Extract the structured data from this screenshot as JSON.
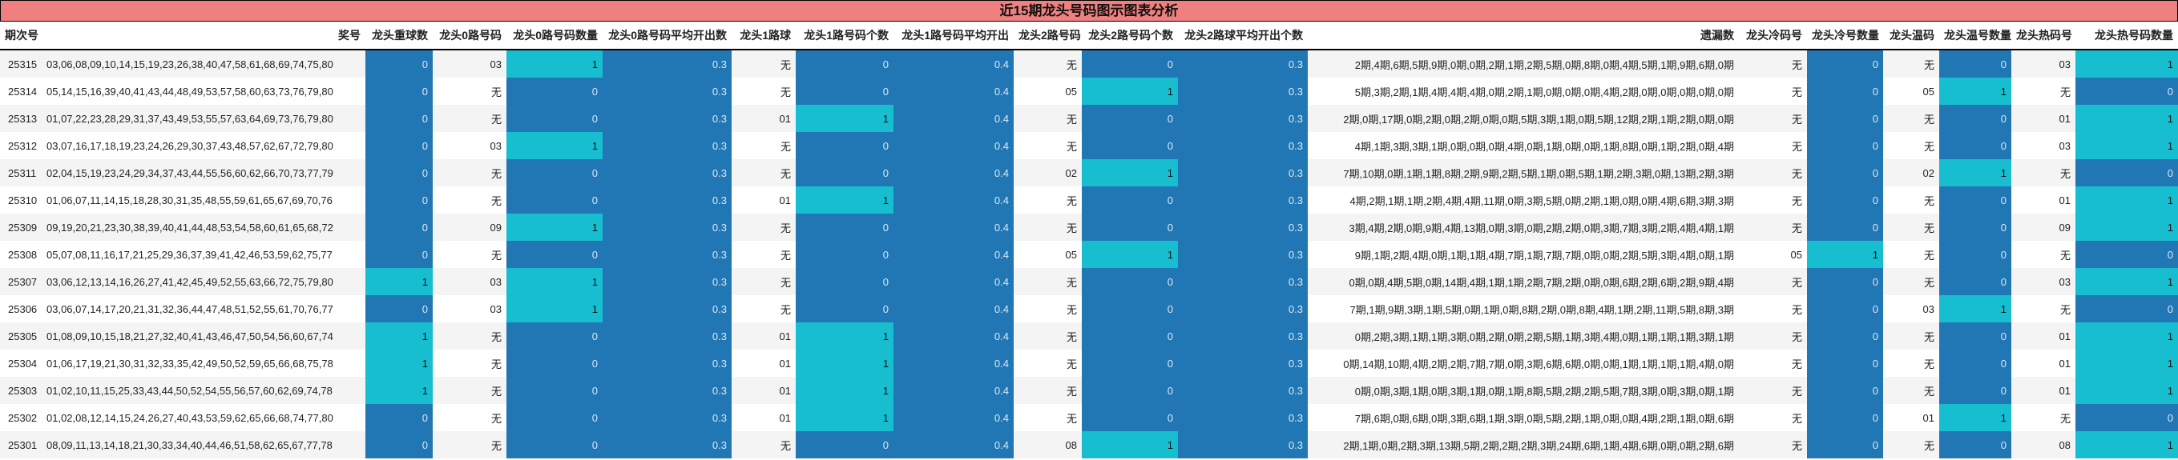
{
  "title": "近15期龙头号码图示图表分析",
  "colors": {
    "header_bg": "#f08080",
    "blue": "#2177b4",
    "cyan": "#17becf",
    "row_alt": "#f4f4f4"
  },
  "columns": [
    "期次号",
    "奖号",
    "龙头重球数",
    "龙头0路号码",
    "龙头0路号码数量",
    "龙头0路号码平均开出数",
    "龙头1路球",
    "龙头1路号码个数",
    "龙头1路号码平均开出",
    "龙头2路号码",
    "龙头2路号码个数",
    "龙头2路球平均开出个数",
    "遗漏数",
    "龙头冷码号",
    "龙头冷号数量",
    "龙头温码",
    "龙头温号数量",
    "龙头热码号",
    "龙头热号码数量"
  ],
  "rows": [
    {
      "period": "25315",
      "nums": "03,06,08,09,10,14,15,19,23,26,38,40,47,58,61,68,69,74,75,80",
      "repeat": "0",
      "r0": "03",
      "r0n": "1",
      "r0avg": "0.3",
      "r1": "无",
      "r1n": "0",
      "r1avg": "0.4",
      "r2": "无",
      "r2n": "0",
      "r2avg": "0.3",
      "miss": "2期,4期,6期,5期,9期,0期,0期,2期,1期,2期,5期,0期,8期,0期,4期,5期,1期,9期,6期,0期",
      "cold": "无",
      "coldn": "0",
      "warm": "无",
      "warmn": "0",
      "hot": "03",
      "hotn": "1"
    },
    {
      "period": "25314",
      "nums": "05,14,15,16,39,40,41,43,44,48,49,53,57,58,60,63,73,76,79,80",
      "repeat": "0",
      "r0": "无",
      "r0n": "0",
      "r0avg": "0.3",
      "r1": "无",
      "r1n": "0",
      "r1avg": "0.4",
      "r2": "05",
      "r2n": "1",
      "r2avg": "0.3",
      "miss": "5期,3期,2期,1期,4期,4期,4期,0期,2期,1期,0期,0期,0期,4期,2期,0期,0期,0期,0期,0期",
      "cold": "无",
      "coldn": "0",
      "warm": "05",
      "warmn": "1",
      "hot": "无",
      "hotn": "0"
    },
    {
      "period": "25313",
      "nums": "01,07,22,23,28,29,31,37,43,49,53,55,57,63,64,69,73,76,79,80",
      "repeat": "0",
      "r0": "无",
      "r0n": "0",
      "r0avg": "0.3",
      "r1": "01",
      "r1n": "1",
      "r1avg": "0.4",
      "r2": "无",
      "r2n": "0",
      "r2avg": "0.3",
      "miss": "2期,0期,17期,0期,2期,0期,2期,0期,0期,5期,3期,1期,0期,5期,12期,2期,1期,2期,0期,0期",
      "cold": "无",
      "coldn": "0",
      "warm": "无",
      "warmn": "0",
      "hot": "01",
      "hotn": "1"
    },
    {
      "period": "25312",
      "nums": "03,07,16,17,18,19,23,24,26,29,30,37,43,48,57,62,67,72,79,80",
      "repeat": "0",
      "r0": "03",
      "r0n": "1",
      "r0avg": "0.3",
      "r1": "无",
      "r1n": "0",
      "r1avg": "0.4",
      "r2": "无",
      "r2n": "0",
      "r2avg": "0.3",
      "miss": "4期,1期,3期,3期,1期,0期,0期,0期,4期,0期,1期,0期,0期,1期,8期,0期,1期,2期,0期,4期",
      "cold": "无",
      "coldn": "0",
      "warm": "无",
      "warmn": "0",
      "hot": "03",
      "hotn": "1"
    },
    {
      "period": "25311",
      "nums": "02,04,15,19,23,24,29,34,37,43,44,55,56,60,62,66,70,73,77,79",
      "repeat": "0",
      "r0": "无",
      "r0n": "0",
      "r0avg": "0.3",
      "r1": "无",
      "r1n": "0",
      "r1avg": "0.4",
      "r2": "02",
      "r2n": "1",
      "r2avg": "0.3",
      "miss": "7期,10期,0期,1期,1期,8期,2期,9期,2期,5期,1期,0期,5期,1期,2期,3期,0期,13期,2期,3期",
      "cold": "无",
      "coldn": "0",
      "warm": "02",
      "warmn": "1",
      "hot": "无",
      "hotn": "0"
    },
    {
      "period": "25310",
      "nums": "01,06,07,11,14,15,18,28,30,31,35,48,55,59,61,65,67,69,70,76",
      "repeat": "0",
      "r0": "无",
      "r0n": "0",
      "r0avg": "0.3",
      "r1": "01",
      "r1n": "1",
      "r1avg": "0.4",
      "r2": "无",
      "r2n": "0",
      "r2avg": "0.3",
      "miss": "4期,2期,1期,1期,2期,4期,4期,11期,0期,3期,5期,0期,2期,1期,0期,0期,4期,6期,3期,3期",
      "cold": "无",
      "coldn": "0",
      "warm": "无",
      "warmn": "0",
      "hot": "01",
      "hotn": "1"
    },
    {
      "period": "25309",
      "nums": "09,19,20,21,23,30,38,39,40,41,44,48,53,54,58,60,61,65,68,72",
      "repeat": "0",
      "r0": "09",
      "r0n": "1",
      "r0avg": "0.3",
      "r1": "无",
      "r1n": "0",
      "r1avg": "0.4",
      "r2": "无",
      "r2n": "0",
      "r2avg": "0.3",
      "miss": "3期,4期,2期,0期,9期,4期,13期,0期,3期,0期,2期,2期,0期,3期,7期,3期,2期,4期,4期,1期",
      "cold": "无",
      "coldn": "0",
      "warm": "无",
      "warmn": "0",
      "hot": "09",
      "hotn": "1"
    },
    {
      "period": "25308",
      "nums": "05,07,08,11,16,17,21,25,29,36,37,39,41,42,46,53,59,62,75,77",
      "repeat": "0",
      "r0": "无",
      "r0n": "0",
      "r0avg": "0.3",
      "r1": "无",
      "r1n": "0",
      "r1avg": "0.4",
      "r2": "05",
      "r2n": "1",
      "r2avg": "0.3",
      "miss": "9期,1期,2期,4期,0期,1期,1期,4期,7期,1期,7期,7期,0期,0期,2期,5期,3期,4期,0期,1期",
      "cold": "05",
      "coldn": "1",
      "warm": "无",
      "warmn": "0",
      "hot": "无",
      "hotn": "0"
    },
    {
      "period": "25307",
      "nums": "03,06,12,13,14,16,26,27,41,42,45,49,52,55,63,66,72,75,79,80",
      "repeat": "1",
      "r0": "03",
      "r0n": "1",
      "r0avg": "0.3",
      "r1": "无",
      "r1n": "0",
      "r1avg": "0.4",
      "r2": "无",
      "r2n": "0",
      "r2avg": "0.3",
      "miss": "0期,0期,4期,5期,0期,14期,4期,1期,1期,2期,7期,2期,0期,0期,6期,2期,6期,2期,9期,4期",
      "cold": "无",
      "coldn": "0",
      "warm": "无",
      "warmn": "0",
      "hot": "03",
      "hotn": "1"
    },
    {
      "period": "25306",
      "nums": "03,06,07,14,17,20,21,31,32,36,44,47,48,51,52,55,61,70,76,77",
      "repeat": "0",
      "r0": "03",
      "r0n": "1",
      "r0avg": "0.3",
      "r1": "无",
      "r1n": "0",
      "r1avg": "0.4",
      "r2": "无",
      "r2n": "0",
      "r2avg": "0.3",
      "miss": "7期,1期,9期,3期,1期,5期,0期,1期,0期,8期,2期,0期,8期,4期,1期,2期,11期,5期,8期,3期",
      "cold": "无",
      "coldn": "0",
      "warm": "03",
      "warmn": "1",
      "hot": "无",
      "hotn": "0"
    },
    {
      "period": "25305",
      "nums": "01,08,09,10,15,18,21,27,32,40,41,43,46,47,50,54,56,60,67,74",
      "repeat": "1",
      "r0": "无",
      "r0n": "0",
      "r0avg": "0.3",
      "r1": "01",
      "r1n": "1",
      "r1avg": "0.4",
      "r2": "无",
      "r2n": "0",
      "r2avg": "0.3",
      "miss": "0期,2期,3期,1期,1期,3期,0期,2期,0期,2期,5期,1期,3期,4期,0期,1期,1期,1期,3期,1期",
      "cold": "无",
      "coldn": "0",
      "warm": "无",
      "warmn": "0",
      "hot": "01",
      "hotn": "1"
    },
    {
      "period": "25304",
      "nums": "01,06,17,19,21,30,31,32,33,35,42,49,50,52,59,65,66,68,75,78",
      "repeat": "1",
      "r0": "无",
      "r0n": "0",
      "r0avg": "0.3",
      "r1": "01",
      "r1n": "1",
      "r1avg": "0.4",
      "r2": "无",
      "r2n": "0",
      "r2avg": "0.3",
      "miss": "0期,14期,10期,4期,2期,2期,7期,7期,0期,3期,6期,6期,0期,0期,1期,1期,1期,1期,4期,0期",
      "cold": "无",
      "coldn": "0",
      "warm": "无",
      "warmn": "0",
      "hot": "01",
      "hotn": "1"
    },
    {
      "period": "25303",
      "nums": "01,02,10,11,15,25,33,43,44,50,52,54,55,56,57,60,62,69,74,78",
      "repeat": "1",
      "r0": "无",
      "r0n": "0",
      "r0avg": "0.3",
      "r1": "01",
      "r1n": "1",
      "r1avg": "0.4",
      "r2": "无",
      "r2n": "0",
      "r2avg": "0.3",
      "miss": "0期,0期,3期,1期,0期,3期,1期,0期,1期,8期,5期,2期,2期,5期,7期,3期,0期,3期,0期,1期",
      "cold": "无",
      "coldn": "0",
      "warm": "无",
      "warmn": "0",
      "hot": "01",
      "hotn": "1"
    },
    {
      "period": "25302",
      "nums": "01,02,08,12,14,15,24,26,27,40,43,53,59,62,65,66,68,74,77,80",
      "repeat": "0",
      "r0": "无",
      "r0n": "0",
      "r0avg": "0.3",
      "r1": "01",
      "r1n": "1",
      "r1avg": "0.4",
      "r2": "无",
      "r2n": "0",
      "r2avg": "0.3",
      "miss": "7期,6期,0期,6期,0期,3期,6期,1期,3期,0期,5期,2期,1期,0期,0期,4期,2期,1期,0期,6期",
      "cold": "无",
      "coldn": "0",
      "warm": "01",
      "warmn": "1",
      "hot": "无",
      "hotn": "0"
    },
    {
      "period": "25301",
      "nums": "08,09,11,13,14,18,21,30,33,34,40,44,46,51,58,62,65,67,77,78",
      "repeat": "0",
      "r0": "无",
      "r0n": "0",
      "r0avg": "0.3",
      "r1": "无",
      "r1n": "0",
      "r1avg": "0.4",
      "r2": "08",
      "r2n": "1",
      "r2avg": "0.3",
      "miss": "2期,1期,0期,2期,3期,13期,5期,2期,2期,2期,3期,24期,6期,1期,4期,6期,0期,0期,2期,6期",
      "cold": "无",
      "coldn": "0",
      "warm": "无",
      "warmn": "0",
      "hot": "08",
      "hotn": "1"
    }
  ]
}
